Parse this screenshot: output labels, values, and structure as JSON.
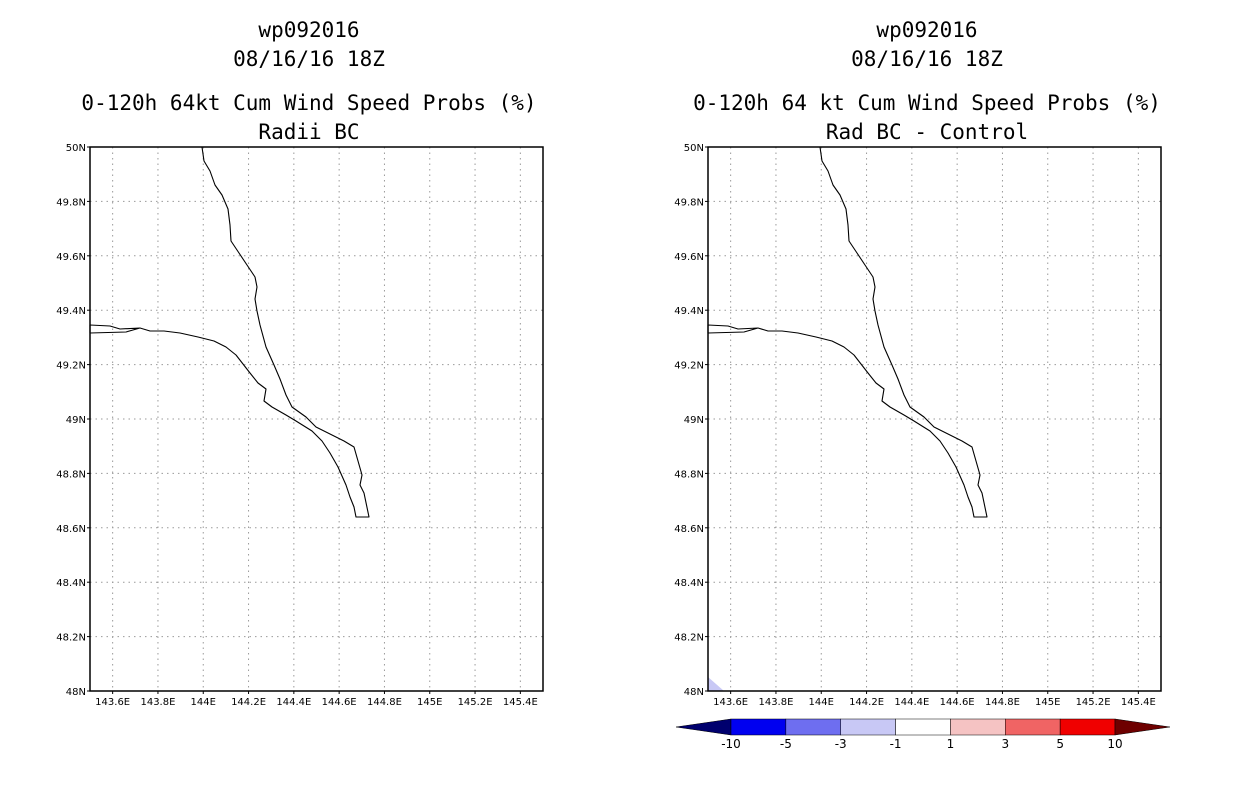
{
  "panels": [
    {
      "id": "left",
      "title_storm": "wp092016",
      "title_time": "08/16/16 18Z",
      "title_product": "0-120h 64kt Cum Wind Speed Probs (%)",
      "title_sub": "Radii BC"
    },
    {
      "id": "right",
      "title_storm": "wp092016",
      "title_time": "08/16/16 18Z",
      "title_product": "0-120h 64 kt Cum Wind Speed Probs (%)",
      "title_sub": "Rad BC - Control"
    }
  ],
  "axes": {
    "lat_labels": [
      "50N",
      "49.8N",
      "49.6N",
      "49.4N",
      "49.2N",
      "49N",
      "48.8N",
      "48.6N",
      "48.4N",
      "48.2N",
      "48N"
    ],
    "lon_labels": [
      "143.6E",
      "143.8E",
      "144E",
      "144.2E",
      "144.4E",
      "144.6E",
      "144.8E",
      "145E",
      "145.2E",
      "145.4E"
    ],
    "lat_range": [
      48.0,
      50.0
    ],
    "lon_range": [
      143.5,
      145.5
    ]
  },
  "colorbar": {
    "labels": [
      "-10",
      "-5",
      "-3",
      "-1",
      "1",
      "3",
      "5",
      "10"
    ],
    "colors": [
      "#00006e",
      "#0000f0",
      "#6e6ef0",
      "#c8c8f5",
      "#ffffff",
      "#f5c3c3",
      "#f06464",
      "#f00000",
      "#6e0000"
    ]
  },
  "colors": {
    "grid": "#9a9a9a",
    "shading_low": "#c8c8f5"
  }
}
